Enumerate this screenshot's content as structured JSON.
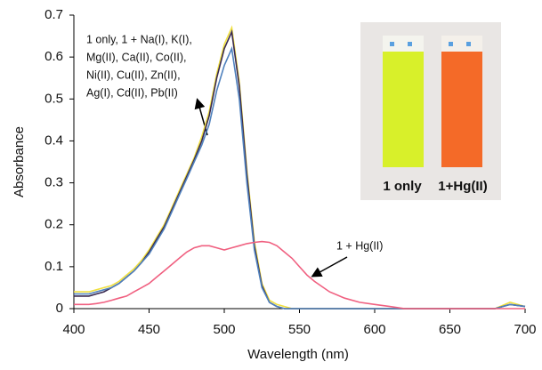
{
  "chart_data": {
    "type": "line",
    "xlabel": "Wavelength (nm)",
    "ylabel": "Absorbance",
    "x": [
      400,
      405,
      410,
      415,
      420,
      425,
      430,
      435,
      440,
      445,
      450,
      455,
      460,
      465,
      470,
      475,
      480,
      485,
      490,
      495,
      500,
      505,
      510,
      515,
      520,
      525,
      530,
      535,
      540,
      545,
      550,
      555,
      560,
      570,
      580,
      590,
      600,
      610,
      620,
      630,
      640,
      650,
      660,
      670,
      680,
      690,
      700
    ],
    "series": [
      {
        "color": "#f0e040",
        "values": [
          0.04,
          0.04,
          0.04,
          0.045,
          0.05,
          0.055,
          0.065,
          0.08,
          0.095,
          0.115,
          0.14,
          0.17,
          0.2,
          0.24,
          0.28,
          0.32,
          0.36,
          0.41,
          0.47,
          0.56,
          0.63,
          0.67,
          0.54,
          0.33,
          0.16,
          0.06,
          0.02,
          0.01,
          0.005,
          0,
          0,
          0,
          0,
          0,
          0,
          0,
          0,
          0,
          0,
          0,
          0,
          0,
          0,
          0,
          0,
          0.015,
          0.005
        ]
      },
      {
        "color": "#3a2a50",
        "values": [
          0.03,
          0.03,
          0.03,
          0.035,
          0.04,
          0.05,
          0.06,
          0.075,
          0.09,
          0.11,
          0.135,
          0.165,
          0.195,
          0.235,
          0.275,
          0.315,
          0.355,
          0.4,
          0.46,
          0.55,
          0.62,
          0.66,
          0.53,
          0.32,
          0.15,
          0.055,
          0.015,
          0.005,
          0,
          0,
          0,
          0,
          0,
          0,
          0,
          0,
          0,
          0,
          0,
          0,
          0,
          0,
          0,
          0,
          0,
          0.01,
          0.005
        ]
      },
      {
        "color": "#4f81bd",
        "values": [
          0.035,
          0.035,
          0.035,
          0.04,
          0.045,
          0.05,
          0.06,
          0.075,
          0.09,
          0.11,
          0.13,
          0.16,
          0.19,
          0.23,
          0.27,
          0.31,
          0.35,
          0.39,
          0.44,
          0.52,
          0.58,
          0.62,
          0.5,
          0.3,
          0.14,
          0.05,
          0.015,
          0.005,
          0,
          0,
          0,
          0,
          0,
          0,
          0,
          0,
          0,
          0,
          0,
          0,
          0,
          0,
          0,
          0,
          0,
          0.01,
          0.005
        ]
      },
      {
        "color": "#f06080",
        "values": [
          0.01,
          0.01,
          0.01,
          0.012,
          0.015,
          0.02,
          0.025,
          0.03,
          0.04,
          0.05,
          0.06,
          0.075,
          0.09,
          0.105,
          0.12,
          0.135,
          0.145,
          0.15,
          0.15,
          0.145,
          0.14,
          0.145,
          0.15,
          0.155,
          0.158,
          0.16,
          0.158,
          0.15,
          0.135,
          0.12,
          0.1,
          0.08,
          0.065,
          0.04,
          0.025,
          0.015,
          0.01,
          0.005,
          0,
          0,
          0,
          0,
          0,
          0,
          0,
          0,
          0
        ]
      }
    ],
    "xlim": [
      400,
      700
    ],
    "xticks": [
      400,
      450,
      500,
      550,
      600,
      650,
      700
    ],
    "ylim": [
      0,
      0.7
    ],
    "yticks": [
      0,
      0.1,
      0.2,
      0.3,
      0.4,
      0.5,
      0.6,
      0.7
    ],
    "annotations": [
      "1 only, 1 + Na(I), K(I),",
      "Mg(II), Ca(II), Co(II),",
      "Ni(II), Cu(II), Zn(II),",
      "Ag(I), Cd(II), Pb(II)",
      "1 + Hg(II)"
    ],
    "inset_labels": [
      "1 only",
      "1+Hg(II)"
    ]
  }
}
